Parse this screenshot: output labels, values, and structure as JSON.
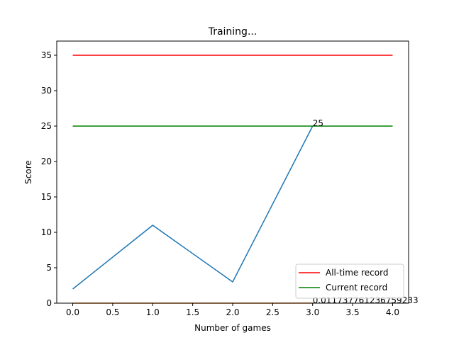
{
  "chart_data": {
    "type": "line",
    "title": "Training...",
    "xlabel": "Number of games",
    "ylabel": "Score",
    "xlim": [
      -0.2,
      4.2
    ],
    "ylim": [
      0,
      37
    ],
    "x_ticks": [
      "0.0",
      "0.5",
      "1.0",
      "1.5",
      "2.0",
      "2.5",
      "3.0",
      "3.5",
      "4.0"
    ],
    "y_ticks": [
      "0",
      "5",
      "10",
      "15",
      "20",
      "25",
      "30",
      "35"
    ],
    "grid": false,
    "legend_position": "bottom-right",
    "series": [
      {
        "color": "#1f77b4",
        "x": [
          0,
          1,
          2,
          3
        ],
        "y": [
          2,
          11,
          3,
          25
        ]
      },
      {
        "color": "#ff7f0e",
        "x": [
          0,
          1,
          2,
          3
        ],
        "y": [
          0,
          0,
          0,
          0.011737761236759233
        ]
      },
      {
        "name": "All-time record",
        "color": "#ff0000",
        "x": [
          0,
          4
        ],
        "y": [
          35,
          35
        ]
      },
      {
        "name": "Current record",
        "color": "#008000",
        "x": [
          0,
          4
        ],
        "y": [
          25,
          25
        ]
      }
    ],
    "annotations": [
      {
        "text": "25",
        "x": 3,
        "y": 25
      },
      {
        "text": "0.011737761236759233",
        "x": 3,
        "y": 0.011737761236759233
      }
    ]
  }
}
